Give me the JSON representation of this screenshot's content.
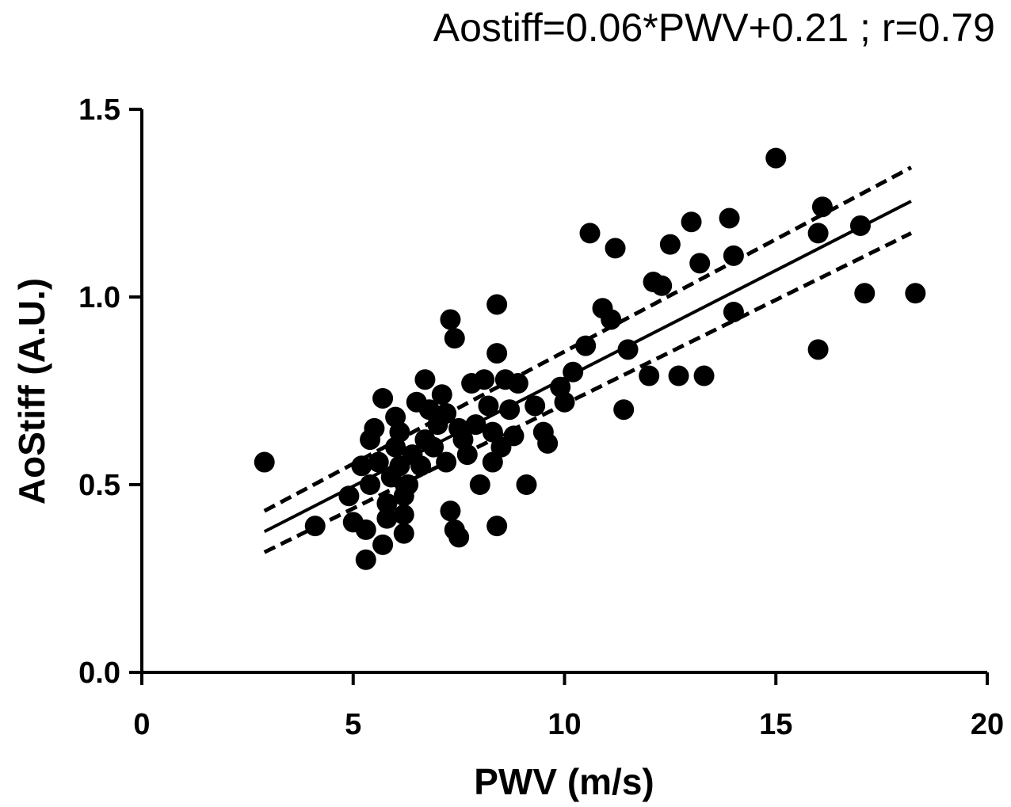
{
  "chart_data": {
    "type": "scatter",
    "title": "Aostiff=0.06*PWV+0.21 ; r=0.79",
    "xlabel": "PWV (m/s)",
    "ylabel": "AoStiff (A.U.)",
    "xlim": [
      0,
      20
    ],
    "ylim": [
      0,
      1.5
    ],
    "x_ticks": [
      "0",
      "5",
      "10",
      "15",
      "20"
    ],
    "y_ticks": [
      "0.0",
      "0.5",
      "1.0",
      "1.5"
    ],
    "x_tick_values": [
      0,
      5,
      10,
      15,
      20
    ],
    "y_tick_values": [
      0,
      0.5,
      1.0,
      1.5
    ],
    "grid": false,
    "legend": "none",
    "point_color": "#000000",
    "regression": {
      "x_range": [
        2.9,
        18.2
      ],
      "line": {
        "y": [
          0.375,
          1.255
        ]
      },
      "ci_upper": {
        "y": [
          0.43,
          1.345
        ]
      },
      "ci_lower": {
        "y": [
          0.32,
          1.17
        ]
      }
    },
    "points": [
      [
        2.9,
        0.56
      ],
      [
        4.1,
        0.39
      ],
      [
        4.9,
        0.47
      ],
      [
        5.0,
        0.4
      ],
      [
        5.2,
        0.55
      ],
      [
        5.3,
        0.38
      ],
      [
        5.3,
        0.3
      ],
      [
        5.4,
        0.62
      ],
      [
        5.5,
        0.65
      ],
      [
        5.4,
        0.5
      ],
      [
        5.6,
        0.56
      ],
      [
        5.7,
        0.34
      ],
      [
        5.7,
        0.73
      ],
      [
        5.8,
        0.45
      ],
      [
        5.8,
        0.41
      ],
      [
        5.9,
        0.52
      ],
      [
        6.0,
        0.68
      ],
      [
        6.0,
        0.6
      ],
      [
        6.1,
        0.64
      ],
      [
        6.1,
        0.55
      ],
      [
        6.2,
        0.47
      ],
      [
        6.2,
        0.42
      ],
      [
        6.2,
        0.37
      ],
      [
        6.3,
        0.5
      ],
      [
        6.4,
        0.58
      ],
      [
        6.5,
        0.72
      ],
      [
        6.6,
        0.55
      ],
      [
        6.7,
        0.78
      ],
      [
        6.7,
        0.62
      ],
      [
        6.8,
        0.7
      ],
      [
        6.9,
        0.6
      ],
      [
        7.0,
        0.66
      ],
      [
        7.1,
        0.74
      ],
      [
        7.2,
        0.56
      ],
      [
        7.2,
        0.69
      ],
      [
        7.3,
        0.43
      ],
      [
        7.3,
        0.94
      ],
      [
        7.4,
        0.89
      ],
      [
        7.4,
        0.38
      ],
      [
        7.5,
        0.36
      ],
      [
        7.5,
        0.65
      ],
      [
        7.6,
        0.62
      ],
      [
        7.7,
        0.58
      ],
      [
        7.8,
        0.77
      ],
      [
        7.9,
        0.66
      ],
      [
        8.0,
        0.5
      ],
      [
        8.1,
        0.78
      ],
      [
        8.2,
        0.71
      ],
      [
        8.3,
        0.64
      ],
      [
        8.3,
        0.56
      ],
      [
        8.4,
        0.98
      ],
      [
        8.4,
        0.85
      ],
      [
        8.4,
        0.39
      ],
      [
        8.5,
        0.6
      ],
      [
        8.6,
        0.78
      ],
      [
        8.7,
        0.7
      ],
      [
        8.8,
        0.63
      ],
      [
        8.9,
        0.77
      ],
      [
        9.1,
        0.5
      ],
      [
        9.3,
        0.71
      ],
      [
        9.5,
        0.64
      ],
      [
        9.6,
        0.61
      ],
      [
        9.9,
        0.76
      ],
      [
        10.0,
        0.72
      ],
      [
        10.2,
        0.8
      ],
      [
        10.5,
        0.87
      ],
      [
        10.6,
        1.17
      ],
      [
        10.9,
        0.97
      ],
      [
        11.1,
        0.94
      ],
      [
        11.2,
        1.13
      ],
      [
        11.4,
        0.7
      ],
      [
        11.5,
        0.86
      ],
      [
        12.0,
        0.79
      ],
      [
        12.1,
        1.04
      ],
      [
        12.3,
        1.03
      ],
      [
        12.5,
        1.14
      ],
      [
        12.7,
        0.79
      ],
      [
        13.0,
        1.2
      ],
      [
        13.2,
        1.09
      ],
      [
        13.3,
        0.79
      ],
      [
        13.9,
        1.21
      ],
      [
        14.0,
        1.11
      ],
      [
        14.0,
        0.96
      ],
      [
        15.0,
        1.37
      ],
      [
        16.0,
        1.17
      ],
      [
        16.0,
        0.86
      ],
      [
        16.1,
        1.24
      ],
      [
        17.0,
        1.19
      ],
      [
        17.1,
        1.01
      ],
      [
        18.3,
        1.01
      ]
    ]
  }
}
